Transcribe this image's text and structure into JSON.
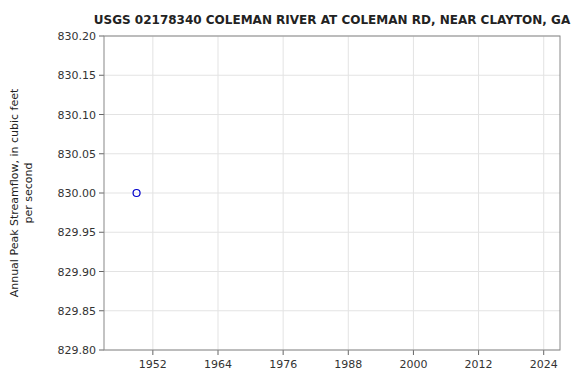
{
  "chart_data": {
    "type": "scatter",
    "title": "USGS 02178340 COLEMAN RIVER AT COLEMAN RD, NEAR CLAYTON, GA",
    "ylabel": "Annual Peak Streamflow, in cubic feet\nper second",
    "x": [
      1949
    ],
    "values": [
      830.0
    ],
    "color": "#0000cc",
    "marker": "circle",
    "xlim": [
      1943,
      2027
    ],
    "ylim": [
      829.8,
      830.2
    ],
    "xticks": [
      1952,
      1964,
      1976,
      1988,
      2000,
      2012,
      2024
    ],
    "yticks": [
      {
        "value": 829.8,
        "label": "829.80"
      },
      {
        "value": 829.85,
        "label": "829.85"
      },
      {
        "value": 829.9,
        "label": "829.90"
      },
      {
        "value": 829.95,
        "label": "829.95"
      },
      {
        "value": 830.0,
        "label": "830.00"
      },
      {
        "value": 830.05,
        "label": "830.05"
      },
      {
        "value": 830.1,
        "label": "830.10"
      },
      {
        "value": 830.15,
        "label": "830.15"
      },
      {
        "value": 830.2,
        "label": "830.20"
      }
    ],
    "grid": true
  }
}
